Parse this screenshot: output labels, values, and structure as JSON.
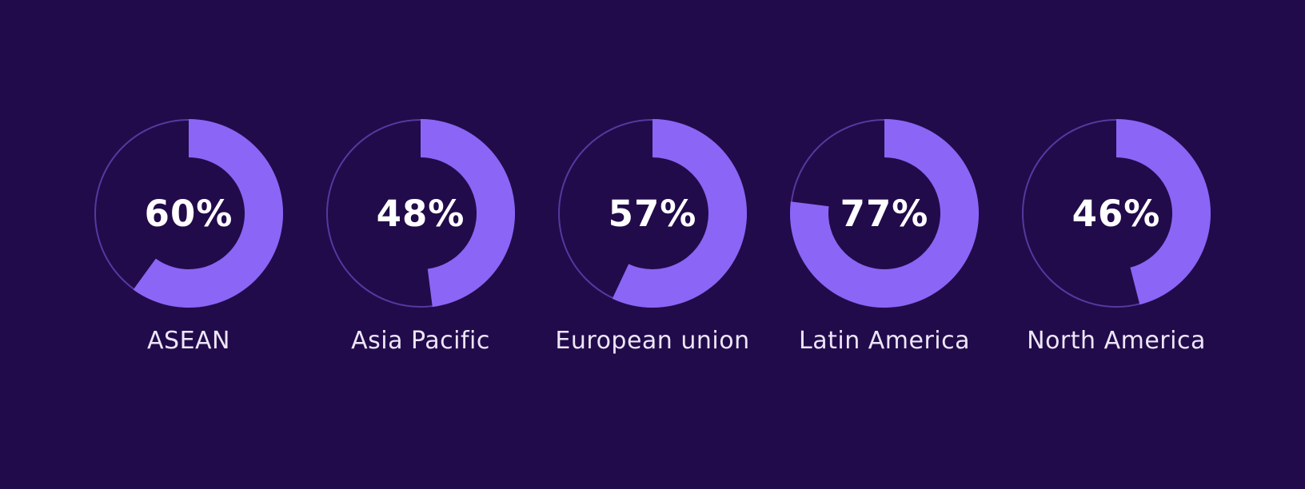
{
  "page": {
    "background_color": "#220B4A",
    "accent_color": "#8B65F6",
    "track_color": "rgba(139, 101, 246, 0.5)",
    "value_text_color": "#FFFFFF",
    "label_text_color": "#ECE6F8"
  },
  "chart_data": {
    "type": "donut",
    "title": "",
    "categories": [
      "ASEAN",
      "Asia Pacific",
      "European union",
      "Latin America",
      "North America"
    ],
    "values": [
      60,
      48,
      57,
      77,
      46
    ],
    "value_labels": [
      "60%",
      "48%",
      "57%",
      "77%",
      "46%"
    ],
    "unit": "%",
    "value_range": [
      0,
      100
    ],
    "layout": {
      "arrangement": "horizontal-row",
      "start_angle": "top",
      "direction": "clockwise",
      "inner_radius_ratio": 0.595,
      "outer_track_ring": true,
      "value_position": "center",
      "label_position": "below"
    }
  }
}
